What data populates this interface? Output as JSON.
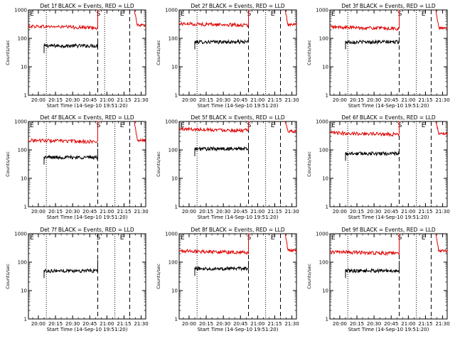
{
  "page": {
    "xlabel_common": "Start Time (14-Sep-10 19:51:20)",
    "ylabel_common": "Counts/sec",
    "colors": {
      "events": "#000000",
      "lld": "#e00000",
      "axes": "#000000",
      "background": "#ffffff"
    },
    "marker_labels": {
      "start": "S",
      "end": "E"
    }
  },
  "chart_data": [
    {
      "type": "line",
      "title": "Det 1f BLACK = Events, RED = LLD",
      "ylabel": "Counts/sec",
      "xlabel": "Start Time (14-Sep-10 19:51:20)",
      "yscale": "log",
      "ylim": [
        1,
        1000
      ],
      "xlim": [
        "19:51:20",
        "21:34:00"
      ],
      "x_ticks": [
        "20:00",
        "20:15",
        "20:30",
        "20:45",
        "21:00",
        "21:15",
        "21:30"
      ],
      "y_ticks": [
        "1",
        "10",
        "100",
        "1000"
      ],
      "vlines_dotted": [
        "20:07",
        "20:58"
      ],
      "vlines_dashed": [
        "20:52",
        "21:20"
      ],
      "markers": {
        "S": "20:52",
        "E": "21:12"
      },
      "series": [
        {
          "name": "Events",
          "color": "#000000",
          "x_start": "20:05",
          "x_end": "20:52",
          "level": 55,
          "final_spike": 95
        },
        {
          "name": "LLD",
          "color": "#e00000",
          "x_start": "19:51:20",
          "x_end": "20:52",
          "level": 270,
          "final_spike": 1000,
          "recovery": {
            "x_start": "21:24",
            "x_end": "21:34",
            "from": 1000,
            "to": 290
          }
        }
      ]
    },
    {
      "type": "line",
      "title": "Det 2f BLACK = Events, RED = LLD",
      "ylabel": "Counts/sec",
      "xlabel": "Start Time (14-Sep-10 19:51:20)",
      "yscale": "log",
      "ylim": [
        1,
        1000
      ],
      "xlim": [
        "19:51:20",
        "21:34:00"
      ],
      "x_ticks": [
        "20:00",
        "20:15",
        "20:30",
        "20:45",
        "21:00",
        "21:15",
        "21:30"
      ],
      "y_ticks": [
        "1",
        "10",
        "100",
        "1000"
      ],
      "vlines_dotted": [
        "20:07",
        "21:07"
      ],
      "vlines_dashed": [
        "20:52",
        "21:20"
      ],
      "markers": {
        "S": "20:52",
        "E": "21:12"
      },
      "series": [
        {
          "name": "Events",
          "color": "#000000",
          "x_start": "20:05",
          "x_end": "20:52",
          "level": 75,
          "final_spike": 110
        },
        {
          "name": "LLD",
          "color": "#e00000",
          "x_start": "19:51:20",
          "x_end": "20:52",
          "level": 330,
          "final_spike": 1000,
          "recovery": {
            "x_start": "21:24",
            "x_end": "21:34",
            "from": 1000,
            "to": 310
          }
        }
      ]
    },
    {
      "type": "line",
      "title": "Det 3f BLACK = Events, RED = LLD",
      "ylabel": "Counts/sec",
      "xlabel": "Start Time (14-Sep-10 19:51:20)",
      "yscale": "log",
      "ylim": [
        1,
        1000
      ],
      "xlim": [
        "19:51:20",
        "21:34:00"
      ],
      "x_ticks": [
        "20:00",
        "20:15",
        "20:30",
        "20:45",
        "21:00",
        "21:15",
        "21:30"
      ],
      "y_ticks": [
        "1",
        "10",
        "100",
        "1000"
      ],
      "vlines_dotted": [
        "20:07",
        "21:07"
      ],
      "vlines_dashed": [
        "20:52",
        "21:20"
      ],
      "markers": {
        "S": "20:52",
        "E": "21:12"
      },
      "series": [
        {
          "name": "Events",
          "color": "#000000",
          "x_start": "20:05",
          "x_end": "20:52",
          "level": 75,
          "final_spike": 110
        },
        {
          "name": "LLD",
          "color": "#e00000",
          "x_start": "19:51:20",
          "x_end": "20:52",
          "level": 250,
          "final_spike": 1000,
          "recovery": {
            "x_start": "21:24",
            "x_end": "21:34",
            "from": 1000,
            "to": 230
          }
        }
      ]
    },
    {
      "type": "line",
      "title": "Det 4f BLACK = Events, RED = LLD",
      "ylabel": "Counts/sec",
      "xlabel": "Start Time (14-Sep-10 19:51:20)",
      "yscale": "log",
      "ylim": [
        1,
        1000
      ],
      "xlim": [
        "19:51:20",
        "21:34:00"
      ],
      "x_ticks": [
        "20:00",
        "20:15",
        "20:30",
        "20:45",
        "21:00",
        "21:15",
        "21:30"
      ],
      "y_ticks": [
        "1",
        "10",
        "100",
        "1000"
      ],
      "vlines_dotted": [
        "20:07",
        "21:07"
      ],
      "vlines_dashed": [
        "20:52",
        "21:20"
      ],
      "markers": {
        "S": "20:52",
        "E": "21:12"
      },
      "series": [
        {
          "name": "Events",
          "color": "#000000",
          "x_start": "20:05",
          "x_end": "20:52",
          "level": 55,
          "final_spike": 110
        },
        {
          "name": "LLD",
          "color": "#e00000",
          "x_start": "19:51:20",
          "x_end": "20:52",
          "level": 220,
          "final_spike": 1000,
          "recovery": {
            "x_start": "21:24",
            "x_end": "21:34",
            "from": 1000,
            "to": 220
          }
        }
      ]
    },
    {
      "type": "line",
      "title": "Det 5f BLACK = Events, RED = LLD",
      "ylabel": "Counts/sec",
      "xlabel": "Start Time (14-Sep-10 19:51:20)",
      "yscale": "log",
      "ylim": [
        1,
        1000
      ],
      "xlim": [
        "19:51:20",
        "21:34:00"
      ],
      "x_ticks": [
        "20:00",
        "20:15",
        "20:30",
        "20:45",
        "21:00",
        "21:15",
        "21:30"
      ],
      "y_ticks": [
        "1",
        "10",
        "100",
        "1000"
      ],
      "vlines_dotted": [
        "20:07",
        "21:07"
      ],
      "vlines_dashed": [
        "20:52",
        "21:20"
      ],
      "markers": {
        "S": "20:52",
        "E": "21:12"
      },
      "series": [
        {
          "name": "Events",
          "color": "#000000",
          "x_start": "20:05",
          "x_end": "20:52",
          "level": 110,
          "final_spike": 140
        },
        {
          "name": "LLD",
          "color": "#e00000",
          "x_start": "19:51:20",
          "x_end": "20:52",
          "level": 550,
          "final_spike": 1000,
          "recovery": {
            "x_start": "21:24",
            "x_end": "21:34",
            "from": 1000,
            "to": 450
          }
        }
      ]
    },
    {
      "type": "line",
      "title": "Det 6f BLACK = Events, RED = LLD",
      "ylabel": "Counts/sec",
      "xlabel": "Start Time (14-Sep-10 19:51:20)",
      "yscale": "log",
      "ylim": [
        1,
        1000
      ],
      "xlim": [
        "19:51:20",
        "21:34:00"
      ],
      "x_ticks": [
        "20:00",
        "20:15",
        "20:30",
        "20:45",
        "21:00",
        "21:15",
        "21:30"
      ],
      "y_ticks": [
        "1",
        "10",
        "100",
        "1000"
      ],
      "vlines_dotted": [
        "20:07",
        "21:07"
      ],
      "vlines_dashed": [
        "20:52",
        "21:20"
      ],
      "markers": {
        "S": "20:52",
        "E": "21:12"
      },
      "series": [
        {
          "name": "Events",
          "color": "#000000",
          "x_start": "20:05",
          "x_end": "20:52",
          "level": 75,
          "final_spike": 110
        },
        {
          "name": "LLD",
          "color": "#e00000",
          "x_start": "19:51:20",
          "x_end": "20:52",
          "level": 400,
          "final_spike": 1000,
          "recovery": {
            "x_start": "21:24",
            "x_end": "21:34",
            "from": 1000,
            "to": 380
          }
        }
      ]
    },
    {
      "type": "line",
      "title": "Det 7f BLACK = Events, RED = LLD",
      "ylabel": "Counts/sec",
      "xlabel": "Start Time (14-Sep-10 19:51:20)",
      "yscale": "log",
      "ylim": [
        1,
        1000
      ],
      "xlim": [
        "19:51:20",
        "21:34:00"
      ],
      "x_ticks": [
        "20:00",
        "20:15",
        "20:30",
        "20:45",
        "21:00",
        "21:15",
        "21:30"
      ],
      "y_ticks": [
        "1",
        "10",
        "100",
        "1000"
      ],
      "vlines_dotted": [
        "20:07",
        "21:07"
      ],
      "vlines_dashed": [
        "20:52",
        "21:20"
      ],
      "markers": {
        "S": "20:52",
        "E": "21:12"
      },
      "series": [
        {
          "name": "Events",
          "color": "#000000",
          "x_start": "20:05",
          "x_end": "20:52",
          "level": 50,
          "final_spike": 120
        }
      ]
    },
    {
      "type": "line",
      "title": "Det 8f BLACK = Events, RED = LLD",
      "ylabel": "Counts/sec",
      "xlabel": "Start Time (14-Sep-10 19:51:20)",
      "yscale": "log",
      "ylim": [
        1,
        1000
      ],
      "xlim": [
        "19:51:20",
        "21:34:00"
      ],
      "x_ticks": [
        "20:00",
        "20:15",
        "20:30",
        "20:45",
        "21:00",
        "21:15",
        "21:30"
      ],
      "y_ticks": [
        "1",
        "10",
        "100",
        "1000"
      ],
      "vlines_dotted": [
        "20:07",
        "21:07"
      ],
      "vlines_dashed": [
        "20:52",
        "21:20"
      ],
      "markers": {
        "S": "20:52",
        "E": "21:12"
      },
      "series": [
        {
          "name": "Events",
          "color": "#000000",
          "x_start": "20:05",
          "x_end": "20:52",
          "level": 60,
          "final_spike": 110
        },
        {
          "name": "LLD",
          "color": "#e00000",
          "x_start": "19:51:20",
          "x_end": "20:52",
          "level": 250,
          "final_spike": 1000,
          "recovery": {
            "x_start": "21:24",
            "x_end": "21:34",
            "from": 1000,
            "to": 260
          }
        }
      ]
    },
    {
      "type": "line",
      "title": "Det 9f BLACK = Events, RED = LLD",
      "ylabel": "Counts/sec",
      "xlabel": "Start Time (14-Sep-10 19:51:20)",
      "yscale": "log",
      "ylim": [
        1,
        1000
      ],
      "xlim": [
        "19:51:20",
        "21:34:00"
      ],
      "x_ticks": [
        "20:00",
        "20:15",
        "20:30",
        "20:45",
        "21:00",
        "21:15",
        "21:30"
      ],
      "y_ticks": [
        "1",
        "10",
        "100",
        "1000"
      ],
      "vlines_dotted": [
        "20:07",
        "21:07"
      ],
      "vlines_dashed": [
        "20:52",
        "21:20"
      ],
      "markers": {
        "S": "20:52",
        "E": "21:12"
      },
      "series": [
        {
          "name": "Events",
          "color": "#000000",
          "x_start": "20:05",
          "x_end": "20:52",
          "level": 50,
          "final_spike": 110
        },
        {
          "name": "LLD",
          "color": "#e00000",
          "x_start": "19:51:20",
          "x_end": "20:52",
          "level": 230,
          "final_spike": 1000,
          "recovery": {
            "x_start": "21:24",
            "x_end": "21:34",
            "from": 1000,
            "to": 250
          }
        }
      ]
    }
  ]
}
